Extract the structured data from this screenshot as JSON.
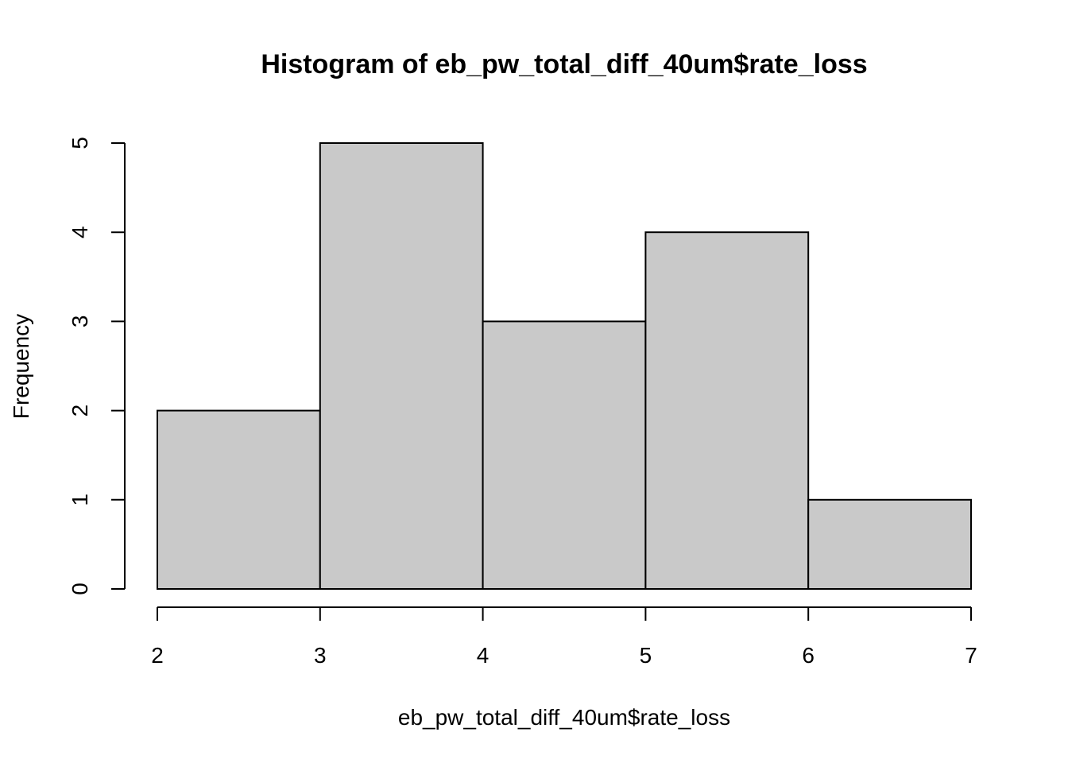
{
  "chart_data": {
    "type": "bar",
    "subtype": "histogram",
    "title": "Histogram of eb_pw_total_diff_40um$rate_loss",
    "xlabel": "eb_pw_total_diff_40um$rate_loss",
    "ylabel": "Frequency",
    "bins": [
      {
        "from": 2,
        "to": 3,
        "count": 2
      },
      {
        "from": 3,
        "to": 4,
        "count": 5
      },
      {
        "from": 4,
        "to": 5,
        "count": 3
      },
      {
        "from": 5,
        "to": 6,
        "count": 4
      },
      {
        "from": 6,
        "to": 7,
        "count": 1
      }
    ],
    "xlim": [
      2,
      7
    ],
    "ylim": [
      0,
      5
    ],
    "x_ticks": [
      "2",
      "3",
      "4",
      "5",
      "6",
      "7"
    ],
    "y_ticks": [
      "0",
      "1",
      "2",
      "3",
      "4",
      "5"
    ],
    "grid": false,
    "bar_color": "#c9c9c9"
  }
}
